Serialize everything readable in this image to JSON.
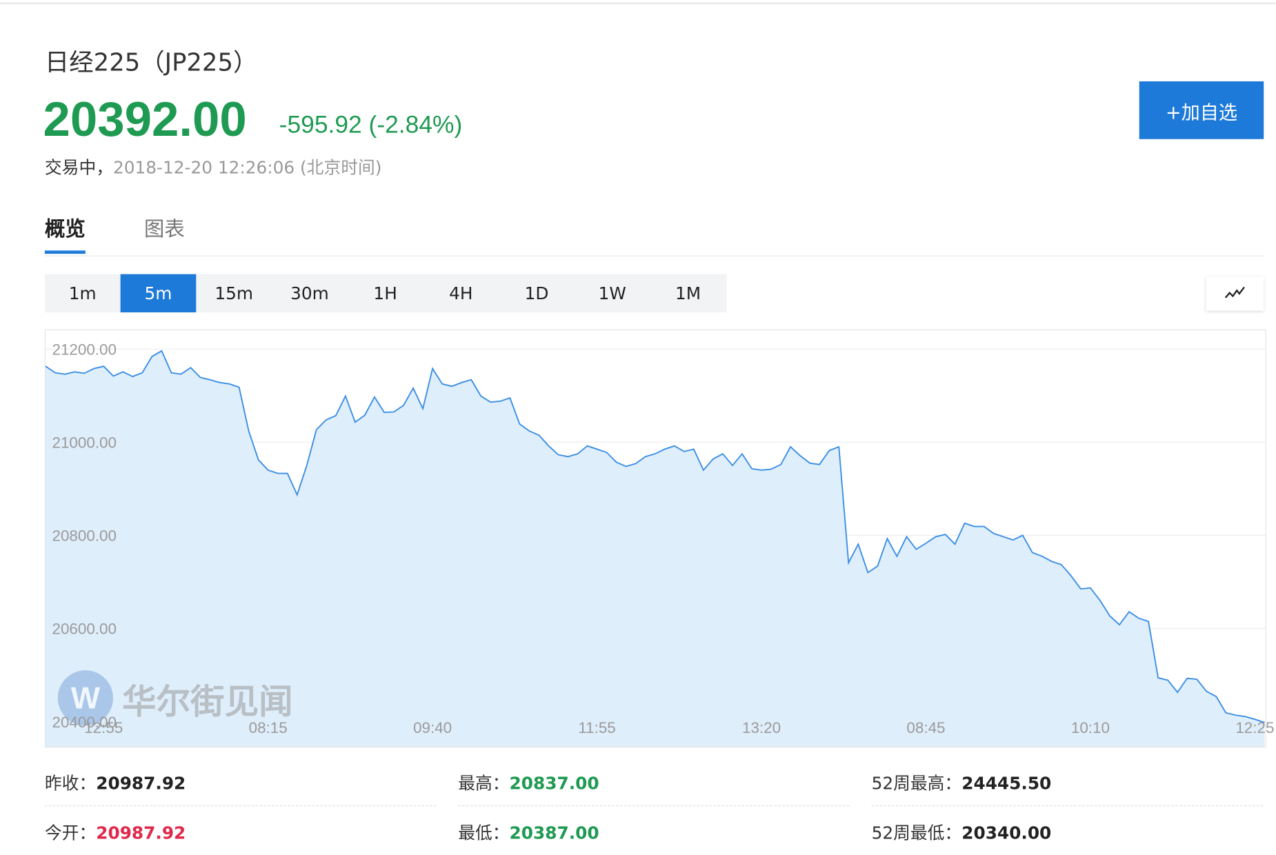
{
  "header": {
    "name": "日经225（JP225）",
    "price": "20392.00",
    "change": "-595.92 (-2.84%)",
    "status": "交易中，",
    "timestamp": "2018-12-20 12:26:06 (北京时间)",
    "button": "+加自选"
  },
  "tabs": {
    "items": [
      "概览",
      "图表"
    ],
    "active": 0
  },
  "periods": {
    "items": [
      "1m",
      "5m",
      "15m",
      "30m",
      "1H",
      "4H",
      "1D",
      "1W",
      "1M"
    ],
    "active": 1
  },
  "watermark": "华尔街见闻",
  "chart_data": {
    "type": "area",
    "color": "#3a8ee6",
    "fill": "#dfeefb",
    "grid": true,
    "values": [
      21163,
      21149,
      21146,
      21151,
      21148,
      21158,
      21163,
      21142,
      21151,
      21141,
      21149,
      21184,
      21196,
      21149,
      21146,
      21160,
      21139,
      21134,
      21128,
      21125,
      21118,
      21024,
      20962,
      20940,
      20933,
      20933,
      20887,
      20950,
      21027,
      21048,
      21057,
      21099,
      21043,
      21058,
      21097,
      21064,
      21065,
      21079,
      21116,
      21072,
      21158,
      21125,
      21120,
      21128,
      21134,
      21099,
      21086,
      21088,
      21095,
      21039,
      21024,
      21015,
      20992,
      20973,
      20969,
      20975,
      20992,
      20985,
      20978,
      20957,
      20948,
      20954,
      20969,
      20975,
      20985,
      20992,
      20980,
      20985,
      20940,
      20964,
      20975,
      20950,
      20975,
      20943,
      20940,
      20942,
      20952,
      20990,
      20971,
      20955,
      20952,
      20982,
      20990,
      20741,
      20781,
      20720,
      20734,
      20793,
      20755,
      20797,
      20770,
      20783,
      20797,
      20802,
      20781,
      20826,
      20819,
      20819,
      20804,
      20797,
      20790,
      20800,
      20763,
      20755,
      20744,
      20737,
      20713,
      20685,
      20687,
      20660,
      20627,
      20608,
      20636,
      20622,
      20615,
      20494,
      20489,
      20463,
      20493,
      20491,
      20465,
      20454,
      20419,
      20414,
      20411,
      20405,
      20398
    ],
    "xlim": [
      0,
      126
    ],
    "xticks": [
      {
        "value": 6,
        "label": "12:55"
      },
      {
        "value": 23,
        "label": "08:15"
      },
      {
        "value": 40,
        "label": "09:40"
      },
      {
        "value": 57,
        "label": "11:55"
      },
      {
        "value": 74,
        "label": "13:20"
      },
      {
        "value": 91,
        "label": "08:45"
      },
      {
        "value": 108,
        "label": "10:10"
      },
      {
        "value": 125,
        "label": "12:25"
      }
    ],
    "ylim": [
      20346,
      21242
    ],
    "yticks": [
      {
        "value": 20400,
        "label": "20400.00"
      },
      {
        "value": 20600,
        "label": "20600.00"
      },
      {
        "value": 20800,
        "label": "20800.00"
      },
      {
        "value": 21000,
        "label": "21000.00"
      },
      {
        "value": 21200,
        "label": "21200.00"
      }
    ]
  },
  "stats": [
    [
      {
        "label": "昨收：",
        "value": "20987.92",
        "color": "#222222"
      },
      {
        "label": "最高：",
        "value": "20837.00",
        "color": "#1f9a52"
      },
      {
        "label": "52周最高：",
        "value": "24445.50",
        "color": "#222222"
      }
    ],
    [
      {
        "label": "今开：",
        "value": "20987.92",
        "color": "#e0294a"
      },
      {
        "label": "最低：",
        "value": "20387.00",
        "color": "#1f9a52"
      },
      {
        "label": "52周最低：",
        "value": "20340.00",
        "color": "#222222"
      }
    ]
  ]
}
